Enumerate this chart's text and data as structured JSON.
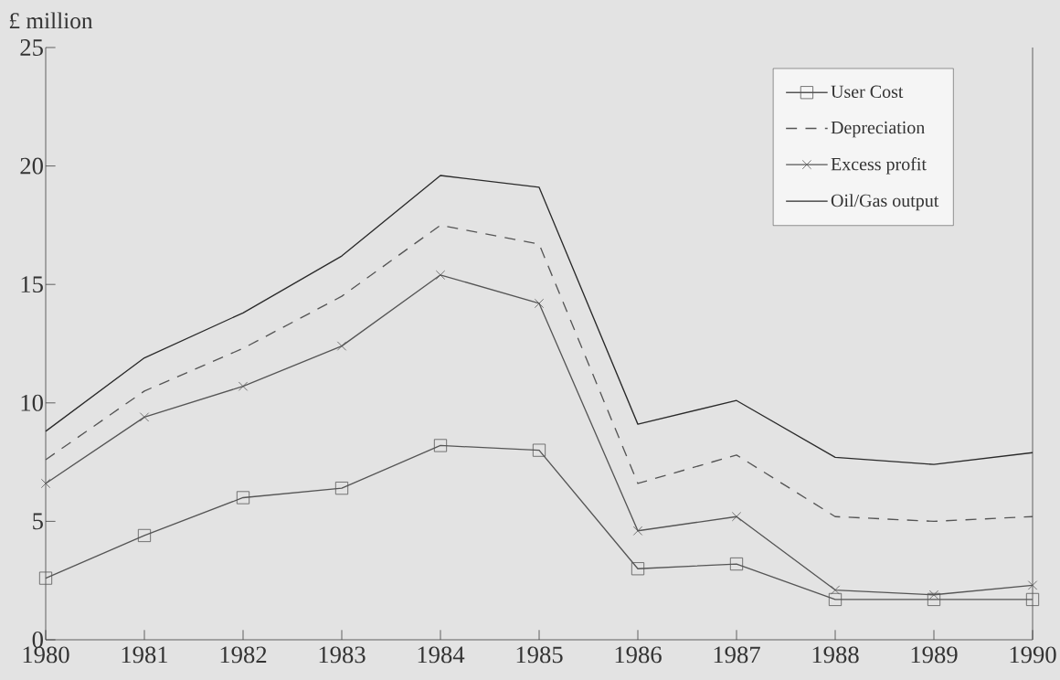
{
  "chart_data": {
    "type": "line",
    "ylabel": "£ million",
    "x": [
      1980,
      1981,
      1982,
      1983,
      1984,
      1985,
      1986,
      1987,
      1988,
      1989,
      1990
    ],
    "series": [
      {
        "name": "User Cost",
        "color": "#555555",
        "marker": "square",
        "line_style": "solid",
        "values": [
          2.6,
          4.4,
          6.0,
          6.4,
          8.2,
          8.0,
          3.0,
          3.2,
          1.7,
          1.7,
          1.7
        ]
      },
      {
        "name": "Depreciation",
        "color": "#555555",
        "marker": "none",
        "line_style": "dashed",
        "values": [
          7.6,
          10.5,
          12.3,
          14.5,
          17.5,
          16.7,
          6.6,
          7.8,
          5.2,
          5.0,
          5.2
        ]
      },
      {
        "name": "Excess profit",
        "color": "#555555",
        "marker": "cross",
        "line_style": "solid",
        "values": [
          6.6,
          9.4,
          10.7,
          12.4,
          15.4,
          14.2,
          4.6,
          5.2,
          2.1,
          1.9,
          2.3
        ]
      },
      {
        "name": "Oil/Gas output",
        "color": "#2a2a2a",
        "marker": "none",
        "line_style": "solid",
        "values": [
          8.8,
          11.9,
          13.8,
          16.2,
          19.6,
          19.1,
          9.1,
          10.1,
          7.7,
          7.4,
          7.9
        ]
      }
    ],
    "xlim": [
      1980,
      1990
    ],
    "ylim": [
      0,
      25
    ],
    "xticks": [
      1980,
      1981,
      1982,
      1983,
      1984,
      1985,
      1986,
      1987,
      1988,
      1989,
      1990
    ],
    "yticks": [
      0,
      5,
      10,
      15,
      20,
      25
    ],
    "grid": false,
    "legend": "top right"
  }
}
